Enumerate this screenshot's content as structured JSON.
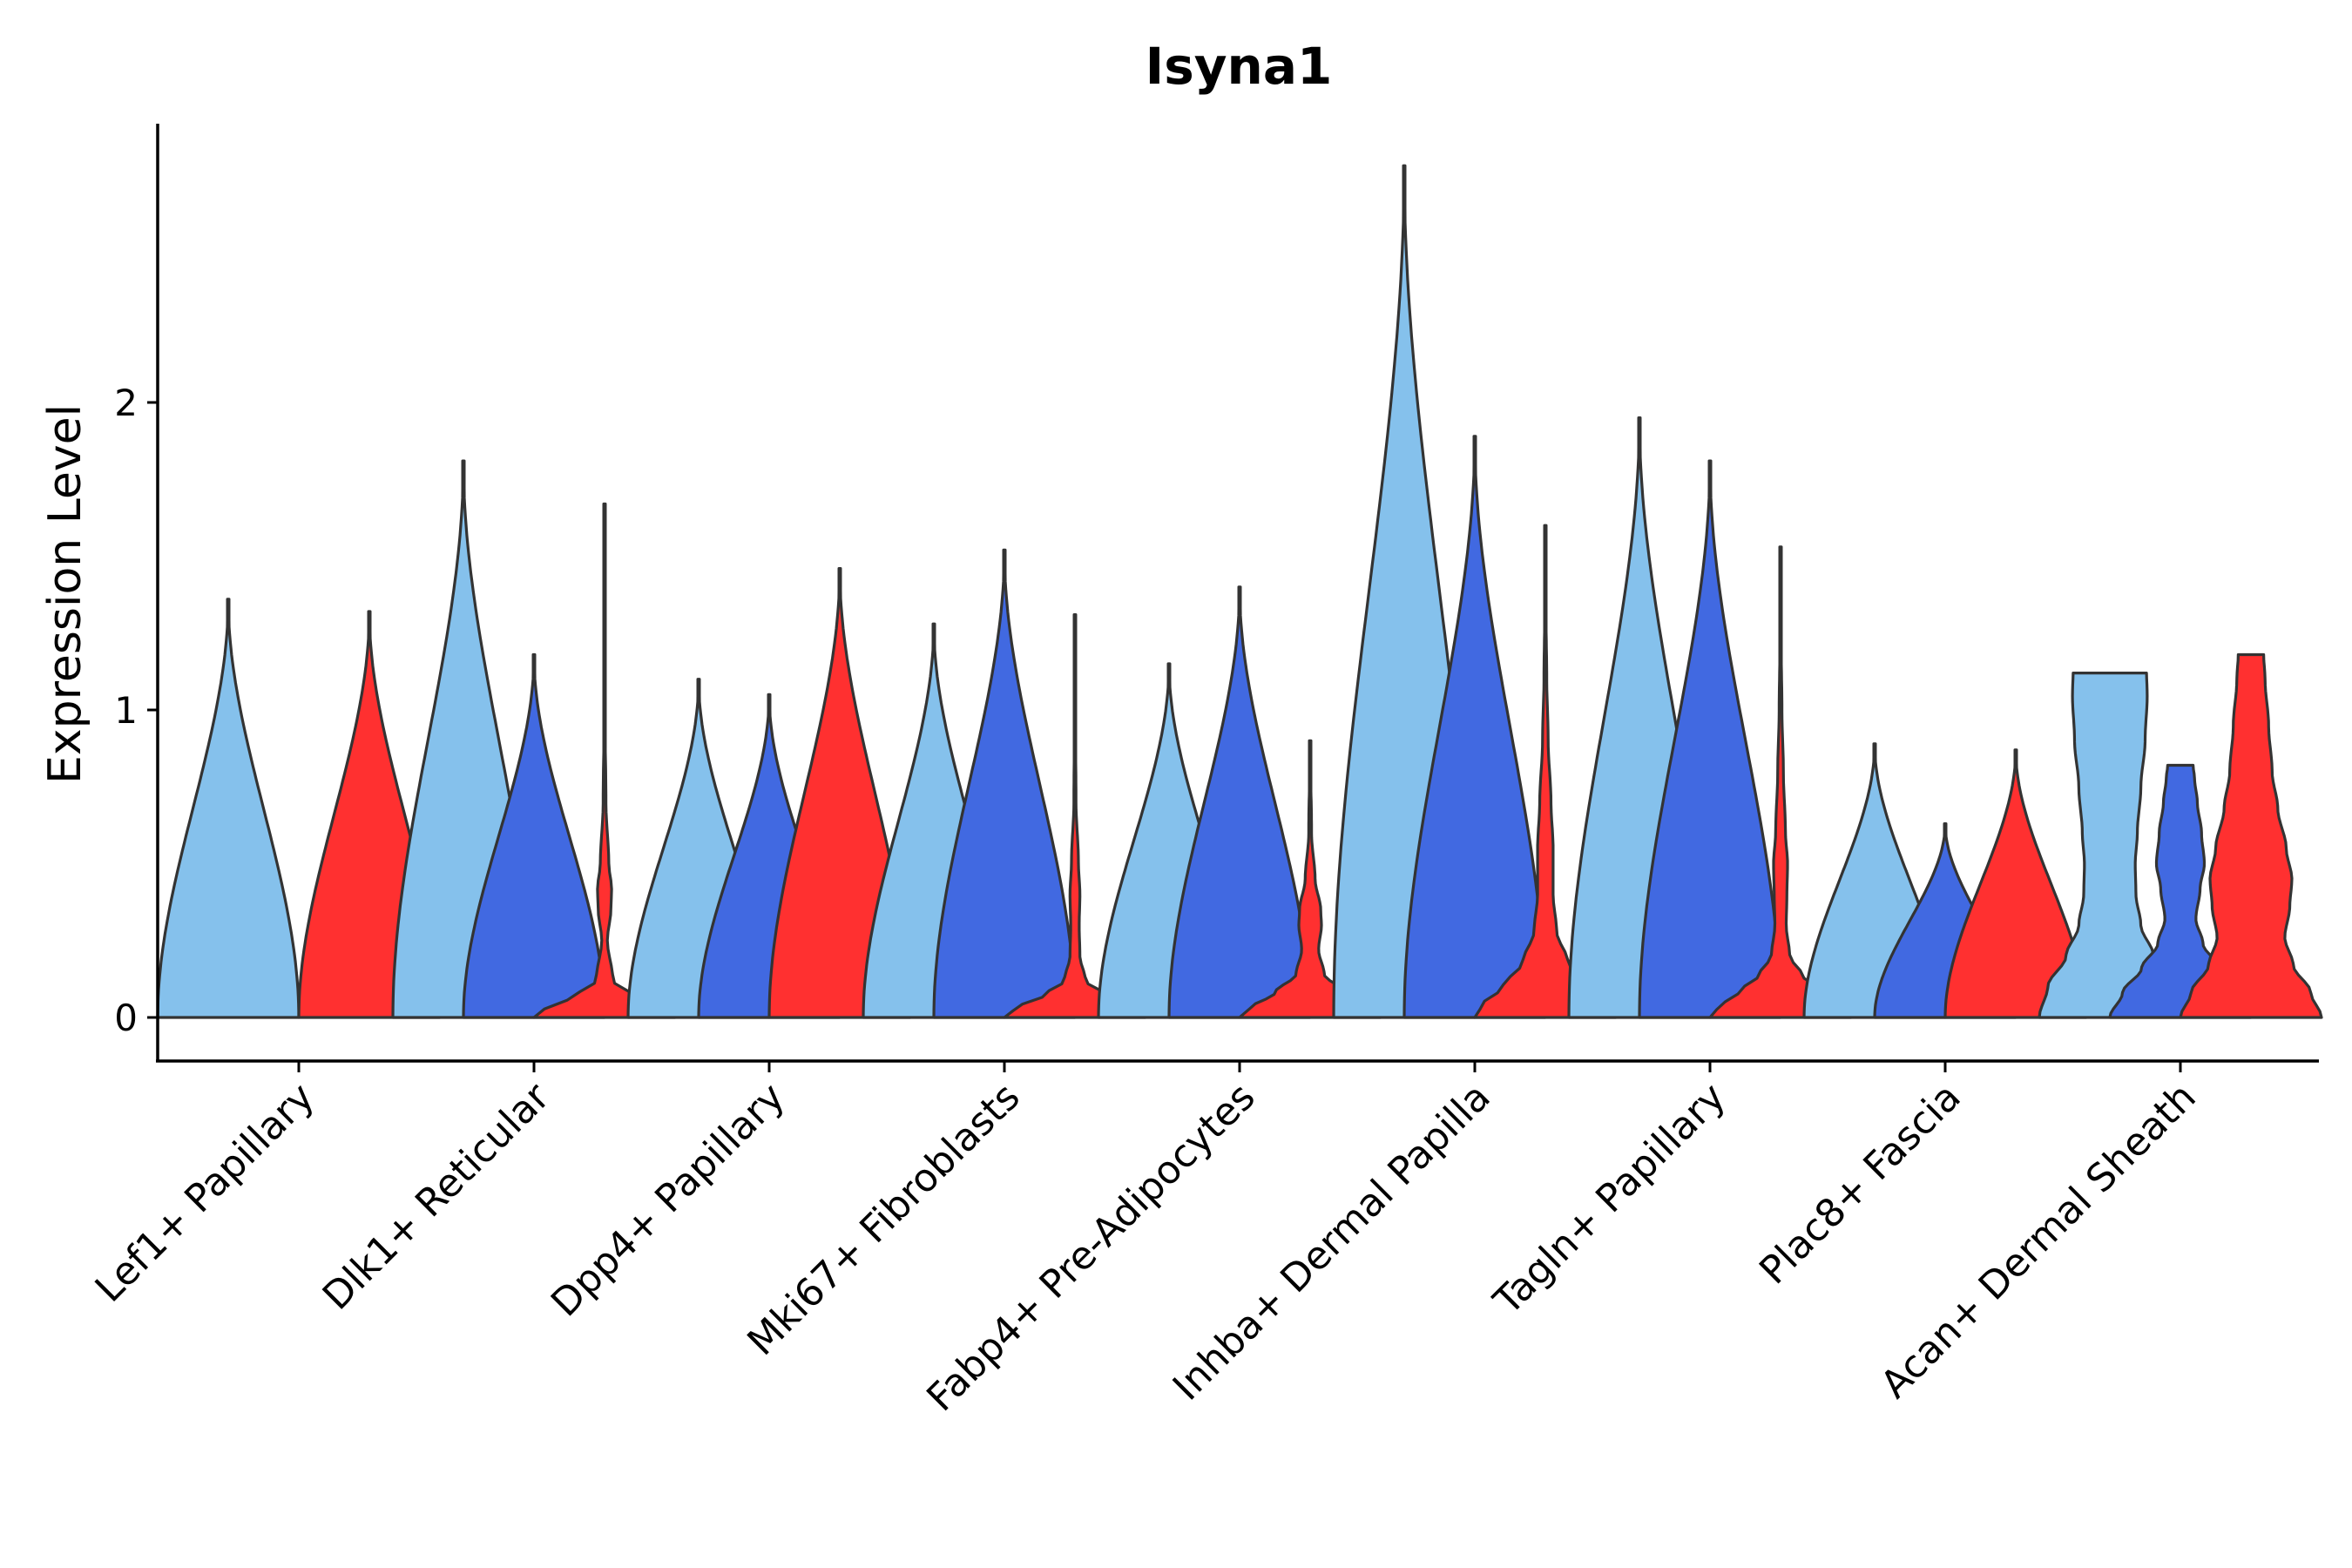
{
  "chart_data": {
    "type": "violin",
    "title": "Isyna1",
    "xlabel": "",
    "ylabel": "Expression Level",
    "ylim": [
      -0.14,
      2.9
    ],
    "yticks": [
      0,
      1,
      2
    ],
    "categories": [
      "Lef1+ Papillary",
      "Dlk1+ Reticular",
      "Dpp4+ Papillary",
      "Mki67+ Fibroblasts",
      "Fabp4+ Pre-Adipocytes",
      "Inhba+ Dermal Papilla",
      "Tagln+ Papillary",
      "Plac8+ Fascia",
      "Acan+ Dermal Sheath"
    ],
    "groups": [
      "left",
      "middle",
      "right"
    ],
    "group_colors": [
      "#85C1EC",
      "#4169E1",
      "#FF3030"
    ],
    "violins": [
      {
        "category": 0,
        "group": 0,
        "max": 1.36,
        "profile": [
          [
            0,
            1.0
          ],
          [
            1.36,
            0.0
          ]
        ]
      },
      {
        "category": 0,
        "group": 2,
        "max": 1.32,
        "profile": [
          [
            0,
            1.0
          ],
          [
            1.32,
            0.0
          ]
        ]
      },
      {
        "category": 1,
        "group": 0,
        "max": 1.81,
        "profile": [
          [
            0,
            1.0
          ],
          [
            1.81,
            0.0
          ]
        ]
      },
      {
        "category": 1,
        "group": 1,
        "max": 1.18,
        "profile": [
          [
            0,
            1.0
          ],
          [
            1.18,
            0.0
          ]
        ]
      },
      {
        "category": 1,
        "group": 2,
        "max": 1.67,
        "profile": [
          [
            0,
            1.0
          ],
          [
            0.03,
            0.85
          ],
          [
            0.07,
            0.4
          ],
          [
            0.12,
            0.12
          ],
          [
            0.25,
            0.04
          ],
          [
            0.35,
            0.09
          ],
          [
            0.42,
            0.1
          ],
          [
            0.5,
            0.06
          ],
          [
            0.7,
            0.02
          ],
          [
            1.0,
            0.005
          ],
          [
            1.67,
            0.0
          ]
        ]
      },
      {
        "category": 2,
        "group": 0,
        "max": 1.1,
        "profile": [
          [
            0,
            1.0
          ],
          [
            1.1,
            0.0
          ]
        ]
      },
      {
        "category": 2,
        "group": 1,
        "max": 1.05,
        "profile": [
          [
            0,
            1.0
          ],
          [
            1.05,
            0.0
          ]
        ]
      },
      {
        "category": 2,
        "group": 2,
        "max": 1.46,
        "profile": [
          [
            0,
            1.0
          ],
          [
            1.46,
            0.0
          ]
        ]
      },
      {
        "category": 3,
        "group": 0,
        "max": 1.28,
        "profile": [
          [
            0,
            1.0
          ],
          [
            1.28,
            0.0
          ]
        ]
      },
      {
        "category": 3,
        "group": 1,
        "max": 1.52,
        "profile": [
          [
            0,
            1.0
          ],
          [
            1.52,
            0.0
          ]
        ]
      },
      {
        "category": 3,
        "group": 2,
        "max": 1.31,
        "profile": [
          [
            0,
            1.0
          ],
          [
            0.03,
            0.85
          ],
          [
            0.07,
            0.45
          ],
          [
            0.12,
            0.15
          ],
          [
            0.2,
            0.07
          ],
          [
            0.3,
            0.06
          ],
          [
            0.4,
            0.07
          ],
          [
            0.5,
            0.05
          ],
          [
            0.7,
            0.015
          ],
          [
            1.0,
            0.005
          ],
          [
            1.31,
            0.0
          ]
        ]
      },
      {
        "category": 4,
        "group": 0,
        "max": 1.15,
        "profile": [
          [
            0,
            1.0
          ],
          [
            1.15,
            0.0
          ]
        ]
      },
      {
        "category": 4,
        "group": 1,
        "max": 1.4,
        "profile": [
          [
            0,
            1.0
          ],
          [
            1.4,
            0.0
          ]
        ]
      },
      {
        "category": 4,
        "group": 2,
        "max": 0.9,
        "profile": [
          [
            0,
            1.0
          ],
          [
            0.03,
            0.85
          ],
          [
            0.08,
            0.5
          ],
          [
            0.14,
            0.2
          ],
          [
            0.22,
            0.12
          ],
          [
            0.3,
            0.16
          ],
          [
            0.35,
            0.15
          ],
          [
            0.45,
            0.07
          ],
          [
            0.6,
            0.02
          ],
          [
            0.9,
            0.0
          ]
        ]
      },
      {
        "category": 5,
        "group": 0,
        "max": 2.77,
        "profile": [
          [
            0,
            1.0
          ],
          [
            2.77,
            0.0
          ]
        ]
      },
      {
        "category": 5,
        "group": 1,
        "max": 1.89,
        "profile": [
          [
            0,
            1.0
          ],
          [
            1.89,
            0.0
          ]
        ]
      },
      {
        "category": 5,
        "group": 2,
        "max": 1.6,
        "profile": [
          [
            0,
            1.0
          ],
          [
            0.04,
            0.9
          ],
          [
            0.1,
            0.6
          ],
          [
            0.18,
            0.32
          ],
          [
            0.28,
            0.16
          ],
          [
            0.4,
            0.11
          ],
          [
            0.55,
            0.11
          ],
          [
            0.7,
            0.08
          ],
          [
            0.9,
            0.04
          ],
          [
            1.1,
            0.02
          ],
          [
            1.3,
            0.01
          ],
          [
            1.6,
            0.0
          ]
        ]
      },
      {
        "category": 6,
        "group": 0,
        "max": 1.95,
        "profile": [
          [
            0,
            1.0
          ],
          [
            1.95,
            0.0
          ]
        ]
      },
      {
        "category": 6,
        "group": 1,
        "max": 1.81,
        "profile": [
          [
            0,
            1.0
          ],
          [
            1.81,
            0.0
          ]
        ]
      },
      {
        "category": 6,
        "group": 2,
        "max": 1.53,
        "profile": [
          [
            0,
            1.0
          ],
          [
            0.03,
            0.9
          ],
          [
            0.08,
            0.6
          ],
          [
            0.14,
            0.3
          ],
          [
            0.2,
            0.13
          ],
          [
            0.3,
            0.08
          ],
          [
            0.4,
            0.09
          ],
          [
            0.5,
            0.1
          ],
          [
            0.6,
            0.07
          ],
          [
            0.8,
            0.04
          ],
          [
            1.0,
            0.02
          ],
          [
            1.2,
            0.01
          ],
          [
            1.53,
            0.0
          ]
        ]
      },
      {
        "category": 7,
        "group": 0,
        "max": 0.89,
        "profile": [
          [
            0,
            1.0
          ],
          [
            0.89,
            0.0
          ]
        ]
      },
      {
        "category": 7,
        "group": 1,
        "max": 0.63,
        "profile": [
          [
            0,
            1.0
          ],
          [
            0.63,
            0.0
          ]
        ]
      },
      {
        "category": 7,
        "group": 2,
        "max": 0.87,
        "profile": [
          [
            0,
            1.0
          ],
          [
            0.87,
            0.0
          ]
        ]
      },
      {
        "category": 8,
        "group": 0,
        "max": 1.12,
        "profile": [
          [
            0,
            1.0
          ],
          [
            0.1,
            0.88
          ],
          [
            0.2,
            0.62
          ],
          [
            0.3,
            0.44
          ],
          [
            0.4,
            0.37
          ],
          [
            0.5,
            0.36
          ],
          [
            0.6,
            0.39
          ],
          [
            0.75,
            0.44
          ],
          [
            0.9,
            0.5
          ],
          [
            1.05,
            0.53
          ],
          [
            1.12,
            0.52
          ]
        ]
      },
      {
        "category": 8,
        "group": 1,
        "max": 0.82,
        "profile": [
          [
            0,
            1.0
          ],
          [
            0.08,
            0.82
          ],
          [
            0.16,
            0.55
          ],
          [
            0.24,
            0.32
          ],
          [
            0.32,
            0.22
          ],
          [
            0.42,
            0.28
          ],
          [
            0.5,
            0.34
          ],
          [
            0.6,
            0.3
          ],
          [
            0.7,
            0.24
          ],
          [
            0.78,
            0.2
          ],
          [
            0.82,
            0.18
          ]
        ]
      },
      {
        "category": 8,
        "group": 2,
        "max": 1.18,
        "profile": [
          [
            0,
            1.0
          ],
          [
            0.08,
            0.85
          ],
          [
            0.17,
            0.6
          ],
          [
            0.26,
            0.48
          ],
          [
            0.36,
            0.55
          ],
          [
            0.45,
            0.58
          ],
          [
            0.55,
            0.5
          ],
          [
            0.68,
            0.38
          ],
          [
            0.8,
            0.3
          ],
          [
            0.95,
            0.25
          ],
          [
            1.1,
            0.2
          ],
          [
            1.18,
            0.18
          ]
        ]
      }
    ]
  }
}
